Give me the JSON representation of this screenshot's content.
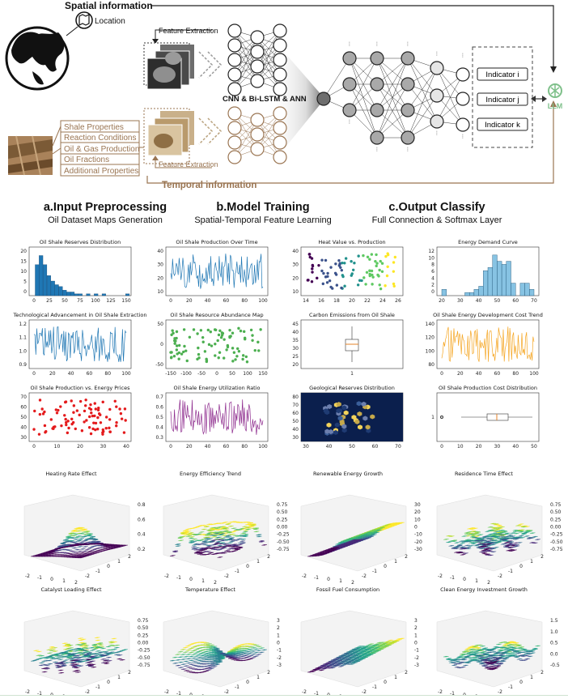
{
  "diagram": {
    "spatial_label": "Spatial information",
    "temporal_label": "Temporal information",
    "location_label": "Location",
    "feature_extraction_top": "Feature Extraction",
    "feature_extraction_bottom": "Feature Extraction",
    "network_label": "CNN & Bi-LSTM & ANN",
    "inputs": [
      "Shale Properties",
      "Reaction Conditions",
      "Oil & Gas Production",
      "Oil Fractions",
      "Additional Properties"
    ],
    "indicators": [
      "Indicator i",
      "Indicator j",
      "Indicator k"
    ],
    "llm_label": "LLM",
    "colors": {
      "brown": "#9a7552",
      "llm_green": "#7fc08a",
      "node_dark": "#6e6e6e",
      "node_mid": "#a9a9a9",
      "node_light": "#e6e6e6"
    }
  },
  "sections": [
    {
      "title": "a.Input Preprocessing",
      "subtitle": "Oil Dataset Maps Generation"
    },
    {
      "title": "b.Model Training",
      "subtitle": "Spatial-Temporal Feature Learning"
    },
    {
      "title": "c.Output Classify",
      "subtitle": "Full Connection & Softmax Layer"
    }
  ],
  "chart_data": [
    {
      "type": "bar",
      "title": "Oil Shale Reserves Distribution",
      "x": [
        5,
        12,
        19,
        26,
        33,
        40,
        47,
        54,
        61,
        68,
        75,
        82,
        96,
        110,
        124,
        138,
        166
      ],
      "values": [
        17,
        22,
        17,
        11,
        8,
        6,
        5,
        3,
        2,
        2,
        1,
        1,
        1,
        1,
        1,
        0,
        1
      ],
      "xticks": [
        "0",
        "25",
        "50",
        "75",
        "100",
        "125",
        "150"
      ],
      "yticks": [
        "0",
        "5",
        "10",
        "15",
        "20"
      ],
      "color": "#1f77b4"
    },
    {
      "type": "line",
      "title": "Oil Shale Production Over Time",
      "xticks": [
        "0",
        "20",
        "40",
        "60",
        "80",
        "100"
      ],
      "yticks": [
        "10",
        "20",
        "30",
        "40"
      ],
      "color": "#1f77b4"
    },
    {
      "type": "scatter",
      "title": "Heat Value vs. Production",
      "xticks": [
        "14",
        "16",
        "18",
        "20",
        "22",
        "24",
        "26"
      ],
      "yticks": [
        "10",
        "20",
        "30",
        "40"
      ],
      "color": "viridis"
    },
    {
      "type": "bar",
      "title": "Energy Demand Curve",
      "xticks": [
        "20",
        "30",
        "40",
        "50",
        "60",
        "70"
      ],
      "yticks": [
        "0",
        "2",
        "4",
        "6",
        "8",
        "10",
        "12"
      ],
      "values": [
        2,
        0,
        0,
        0,
        0,
        1,
        1,
        2,
        3,
        8,
        9,
        13,
        11,
        10,
        11,
        4,
        0,
        4,
        4,
        2
      ],
      "color": "#87c3e3"
    },
    {
      "type": "line",
      "title": "Technological Advancement in Oil Shale Extraction",
      "xticks": [
        "0",
        "20",
        "40",
        "60",
        "80",
        "100"
      ],
      "yticks": [
        "0.9",
        "1.0",
        "1.1",
        "1.2"
      ],
      "color": "#1f77b4"
    },
    {
      "type": "scatter",
      "title": "Oil Shale Resource Abundance Map",
      "xticks": [
        "-150",
        "-100",
        "-50",
        "0",
        "50",
        "100",
        "150"
      ],
      "yticks": [
        "-50",
        "0",
        "50"
      ],
      "color": "#4caf50"
    },
    {
      "type": "box",
      "title": "Carbon Emissions from Oil Shale",
      "xticks": [
        "1"
      ],
      "yticks": [
        "20",
        "25",
        "30",
        "35",
        "40",
        "45"
      ],
      "color": "#e6832a"
    },
    {
      "type": "line",
      "title": "Oil Shale Energy Development Cost Trend",
      "xticks": [
        "0",
        "20",
        "40",
        "60",
        "80",
        "100"
      ],
      "yticks": [
        "80",
        "100",
        "120",
        "140"
      ],
      "color": "#f5a623"
    },
    {
      "type": "scatter",
      "title": "Oil Shale Production vs. Energy Prices",
      "xticks": [
        "0",
        "10",
        "20",
        "30",
        "40"
      ],
      "yticks": [
        "30",
        "40",
        "50",
        "60",
        "70"
      ],
      "color": "#e41a1c"
    },
    {
      "type": "line",
      "title": "Oil Shale Energy Utilization Ratio",
      "xticks": [
        "0",
        "20",
        "40",
        "60",
        "80",
        "100"
      ],
      "yticks": [
        "0.3",
        "0.4",
        "0.5",
        "0.6",
        "0.7"
      ],
      "color": "#8e2c8e"
    },
    {
      "type": "heatmap",
      "title": "Geological Reserves Distribution",
      "xticks": [
        "30",
        "40",
        "50",
        "60",
        "70"
      ],
      "yticks": [
        "30",
        "40",
        "50",
        "60",
        "70",
        "80"
      ],
      "color": "#0b1f4d"
    },
    {
      "type": "box",
      "title": "Oil Shale Production Cost Distribution",
      "xticks": [
        "0",
        "10",
        "20",
        "30",
        "40",
        "50"
      ],
      "yticks": [
        "1"
      ],
      "color": "#e6832a"
    }
  ],
  "surfaces": [
    {
      "title": "Heating Rate Effect",
      "zticks": [
        "0.8",
        "0.6",
        "0.4",
        "0.2"
      ]
    },
    {
      "title": "Energy Efficiency Trend",
      "zticks": [
        "0.75",
        "0.50",
        "0.25",
        "0.00",
        "-0.25",
        "-0.50",
        "-0.75"
      ]
    },
    {
      "title": "Renewable Energy Growth",
      "zticks": [
        "30",
        "20",
        "10",
        "0",
        "-10",
        "-20",
        "-30"
      ]
    },
    {
      "title": "Residence Time Effect",
      "zticks": [
        "0.75",
        "0.50",
        "0.25",
        "0.00",
        "-0.25",
        "-0.50",
        "-0.75"
      ]
    },
    {
      "title": "Catalyst Loading Effect",
      "zticks": [
        "0.75",
        "0.50",
        "0.25",
        "0.00",
        "-0.25",
        "-0.50",
        "-0.75"
      ]
    },
    {
      "title": "Temperature Effect",
      "zticks": [
        "3",
        "2",
        "1",
        "0",
        "-1",
        "-2",
        "-3"
      ]
    },
    {
      "title": "Fossil Fuel Consumption",
      "zticks": [
        "3",
        "2",
        "1",
        "0",
        "-1",
        "-2",
        "-3"
      ]
    },
    {
      "title": "Clean Energy Investment Growth",
      "zticks": [
        "1.5",
        "1.0",
        "0.5",
        "0.0",
        "-0.5"
      ]
    }
  ],
  "axis_ticks": {
    "xy": [
      "-2",
      "-1",
      "0",
      "1",
      "2"
    ]
  }
}
